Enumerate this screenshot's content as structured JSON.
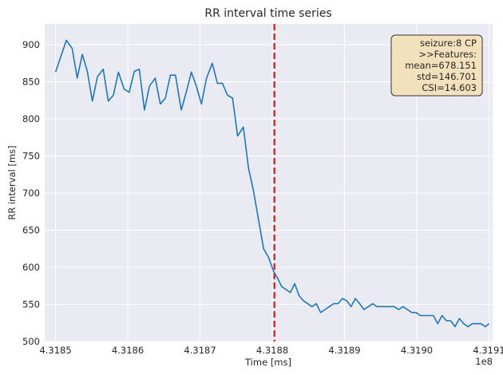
{
  "chart_data": {
    "type": "line",
    "title": "RR interval time series",
    "xlabel": "Time [ms]",
    "ylabel": "RR interval [ms]",
    "x_offset_label": "1e8",
    "xlim": [
      4.318485,
      4.319105
    ],
    "ylim": [
      500,
      928
    ],
    "x_ticks": [
      4.3185,
      4.3186,
      4.3187,
      4.3188,
      4.3189,
      4.319,
      4.3191
    ],
    "x_tick_labels": [
      "4.3185",
      "4.3186",
      "4.3187",
      "4.3188",
      "4.3189",
      "4.3190",
      "4.3191"
    ],
    "y_ticks": [
      500,
      550,
      600,
      650,
      700,
      750,
      800,
      850,
      900
    ],
    "y_tick_labels": [
      "500",
      "550",
      "600",
      "650",
      "700",
      "750",
      "800",
      "850",
      "900"
    ],
    "grid": true,
    "series": [
      {
        "color": "#1f77b4",
        "x": [
          4.3185,
          4.318507,
          4.318515,
          4.318523,
          4.31853,
          4.318537,
          4.318544,
          4.318551,
          4.318558,
          4.318566,
          4.318573,
          4.31858,
          4.318587,
          4.318595,
          4.318602,
          4.318609,
          4.318616,
          4.318623,
          4.31863,
          4.318638,
          4.318645,
          4.318652,
          4.318659,
          4.318666,
          4.318674,
          4.318681,
          4.318688,
          4.318695,
          4.318702,
          4.318709,
          4.318717,
          4.318724,
          4.318731,
          4.318738,
          4.318745,
          4.318752,
          4.31876,
          4.318767,
          4.318774,
          4.318781,
          4.318788,
          4.318795,
          4.318802,
          4.318807,
          4.318813,
          4.318819,
          4.318825,
          4.318831,
          4.318837,
          4.318843,
          4.318849,
          4.318855,
          4.318861,
          4.318867,
          4.318873,
          4.318879,
          4.318885,
          4.318891,
          4.318897,
          4.318903,
          4.318909,
          4.318915,
          4.318921,
          4.318927,
          4.318933,
          4.318939,
          4.318945,
          4.318951,
          4.318957,
          4.318963,
          4.318969,
          4.318975,
          4.318981,
          4.318987,
          4.318993,
          4.318999,
          4.319005,
          4.319011,
          4.319017,
          4.319023,
          4.319029,
          4.319035,
          4.319041,
          4.319047,
          4.319053,
          4.319059,
          4.319065,
          4.319071,
          4.319077,
          4.319083,
          4.319089,
          4.319095,
          4.3191
        ],
        "y": [
          863,
          883,
          906,
          895,
          855,
          887,
          864,
          824,
          857,
          867,
          824,
          832,
          863,
          840,
          836,
          864,
          867,
          812,
          844,
          855,
          820,
          828,
          859,
          859,
          812,
          836,
          863,
          844,
          820,
          855,
          875,
          848,
          848,
          832,
          828,
          777,
          789,
          734,
          703,
          664,
          625,
          613,
          594,
          586,
          574,
          570,
          566,
          578,
          562,
          555,
          551,
          547,
          551,
          539,
          543,
          547,
          551,
          551,
          558,
          555,
          547,
          558,
          551,
          543,
          547,
          551,
          547,
          547,
          547,
          547,
          547,
          543,
          547,
          543,
          539,
          539,
          535,
          535,
          535,
          535,
          524,
          535,
          528,
          528,
          520,
          531,
          524,
          520,
          524,
          524,
          524,
          520,
          524
        ]
      }
    ],
    "vline": {
      "x": 4.318803,
      "color": "#d62728",
      "style": "dashed"
    },
    "annotation": {
      "lines": [
        "seizure:8 CP",
        ">>Features:",
        "mean=678.151",
        "std=146.701",
        "CSI=14.603"
      ],
      "placement": "top-right"
    }
  }
}
